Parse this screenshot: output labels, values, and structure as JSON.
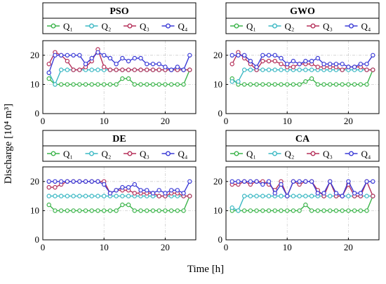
{
  "figure": {
    "xlabel": "Time [h]",
    "ylabel": "Discharge [10⁴ m³]"
  },
  "chart_data": [
    {
      "type": "line",
      "title": "PSO",
      "xlim": [
        0,
        25
      ],
      "ylim": [
        0,
        25
      ],
      "xticks": [
        0,
        10,
        20
      ],
      "yticks": [
        0,
        10,
        20
      ],
      "grid": true,
      "legend": "top",
      "x": [
        1,
        2,
        3,
        4,
        5,
        6,
        7,
        8,
        9,
        10,
        11,
        12,
        13,
        14,
        15,
        16,
        17,
        18,
        19,
        20,
        21,
        22,
        23,
        24
      ],
      "series": [
        {
          "name": "Q₁",
          "color": "#3cb44b",
          "values": [
            12,
            10,
            10,
            10,
            10,
            10,
            10,
            10,
            10,
            10,
            10,
            10,
            12,
            12,
            10,
            10,
            10,
            10,
            10,
            10,
            10,
            10,
            10,
            15
          ]
        },
        {
          "name": "Q₂",
          "color": "#3bb8c4",
          "values": [
            14,
            10,
            15,
            15,
            15,
            15,
            15,
            15,
            15,
            15,
            15,
            15,
            15,
            15,
            15,
            15,
            15,
            15,
            15,
            15,
            15,
            15,
            15,
            15
          ]
        },
        {
          "name": "Q₃",
          "color": "#b5305a",
          "values": [
            17,
            21,
            20,
            18,
            15,
            15,
            16,
            18,
            22,
            16,
            15,
            15,
            15,
            15,
            15,
            15,
            15,
            15,
            15,
            15,
            15,
            15,
            15,
            15
          ]
        },
        {
          "name": "Q₄",
          "color": "#3b3bd6",
          "values": [
            14,
            20,
            20,
            20,
            20,
            20,
            17,
            19,
            21,
            20,
            19,
            17,
            19,
            18,
            19,
            19,
            17,
            17,
            17,
            16,
            15,
            16,
            15,
            20
          ]
        }
      ]
    },
    {
      "type": "line",
      "title": "GWO",
      "xlim": [
        0,
        25
      ],
      "ylim": [
        0,
        25
      ],
      "xticks": [
        0,
        10,
        20
      ],
      "yticks": [
        0,
        10,
        20
      ],
      "grid": true,
      "legend": "top",
      "x": [
        1,
        2,
        3,
        4,
        5,
        6,
        7,
        8,
        9,
        10,
        11,
        12,
        13,
        14,
        15,
        16,
        17,
        18,
        19,
        20,
        21,
        22,
        23,
        24
      ],
      "series": [
        {
          "name": "Q₁",
          "color": "#3cb44b",
          "values": [
            12,
            10,
            10,
            10,
            10,
            10,
            10,
            10,
            10,
            10,
            10,
            10,
            11,
            12,
            10,
            10,
            10,
            10,
            10,
            10,
            10,
            10,
            10,
            15
          ]
        },
        {
          "name": "Q₂",
          "color": "#3bb8c4",
          "values": [
            11,
            11,
            15,
            15,
            15,
            15,
            15,
            15,
            15,
            15,
            15,
            15,
            15,
            15,
            15,
            15,
            15,
            15,
            15,
            15,
            15,
            15,
            15,
            15
          ]
        },
        {
          "name": "Q₃",
          "color": "#b5305a",
          "values": [
            17,
            21,
            19,
            17,
            15,
            18,
            18,
            18,
            17,
            16,
            16,
            17,
            17,
            17,
            16,
            16,
            16,
            16,
            15,
            16,
            16,
            16,
            15,
            15
          ]
        },
        {
          "name": "Q₄",
          "color": "#3b3bd6",
          "values": [
            20,
            20,
            20,
            18,
            16,
            20,
            20,
            20,
            19,
            17,
            18,
            17,
            18,
            18,
            19,
            17,
            17,
            17,
            17,
            16,
            16,
            17,
            17,
            20
          ]
        }
      ]
    },
    {
      "type": "line",
      "title": "DE",
      "xlim": [
        0,
        25
      ],
      "ylim": [
        0,
        25
      ],
      "xticks": [
        0,
        10,
        20
      ],
      "yticks": [
        0,
        10,
        20
      ],
      "grid": true,
      "legend": "top",
      "x": [
        1,
        2,
        3,
        4,
        5,
        6,
        7,
        8,
        9,
        10,
        11,
        12,
        13,
        14,
        15,
        16,
        17,
        18,
        19,
        20,
        21,
        22,
        23,
        24
      ],
      "series": [
        {
          "name": "Q₁",
          "color": "#3cb44b",
          "values": [
            12,
            10,
            10,
            10,
            10,
            10,
            10,
            10,
            10,
            10,
            10,
            10,
            12,
            12,
            10,
            10,
            10,
            10,
            10,
            10,
            10,
            10,
            10,
            15
          ]
        },
        {
          "name": "Q₂",
          "color": "#3bb8c4",
          "values": [
            15,
            15,
            15,
            15,
            15,
            15,
            15,
            15,
            15,
            15,
            15,
            15,
            15,
            15,
            15,
            15,
            15,
            15,
            15,
            15,
            15,
            15,
            15,
            15
          ]
        },
        {
          "name": "Q₃",
          "color": "#b5305a",
          "values": [
            18,
            18,
            19,
            20,
            20,
            20,
            20,
            20,
            20,
            20,
            16,
            17,
            17,
            17,
            16,
            16,
            16,
            16,
            15,
            15,
            16,
            16,
            15,
            15
          ]
        },
        {
          "name": "Q₄",
          "color": "#3b3bd6",
          "values": [
            20,
            20,
            20,
            20,
            20,
            20,
            20,
            20,
            20,
            19,
            16,
            17,
            18,
            18,
            19,
            17,
            17,
            16,
            17,
            16,
            17,
            17,
            16,
            20
          ]
        }
      ]
    },
    {
      "type": "line",
      "title": "CA",
      "xlim": [
        0,
        25
      ],
      "ylim": [
        0,
        25
      ],
      "xticks": [
        0,
        10,
        20
      ],
      "yticks": [
        0,
        10,
        20
      ],
      "grid": true,
      "legend": "top",
      "x": [
        1,
        2,
        3,
        4,
        5,
        6,
        7,
        8,
        9,
        10,
        11,
        12,
        13,
        14,
        15,
        16,
        17,
        18,
        19,
        20,
        21,
        22,
        23,
        24
      ],
      "series": [
        {
          "name": "Q₁",
          "color": "#3cb44b",
          "values": [
            10,
            10,
            10,
            10,
            10,
            10,
            10,
            10,
            10,
            10,
            10,
            10,
            12,
            10,
            10,
            10,
            10,
            10,
            10,
            10,
            10,
            10,
            10,
            15
          ]
        },
        {
          "name": "Q₂",
          "color": "#3bb8c4",
          "values": [
            11,
            10,
            15,
            15,
            15,
            15,
            15,
            15,
            15,
            15,
            15,
            15,
            15,
            15,
            15,
            15,
            15,
            15,
            15,
            15,
            15,
            15,
            15,
            15
          ]
        },
        {
          "name": "Q₃",
          "color": "#b5305a",
          "values": [
            19,
            19,
            20,
            19,
            20,
            20,
            19,
            17,
            20,
            15,
            20,
            19,
            20,
            20,
            17,
            15,
            20,
            15,
            15,
            19,
            15,
            15,
            20,
            15
          ]
        },
        {
          "name": "Q₄",
          "color": "#3b3bd6",
          "values": [
            20,
            20,
            20,
            20,
            20,
            19,
            20,
            16,
            19,
            15,
            20,
            20,
            20,
            20,
            16,
            16,
            20,
            16,
            15,
            20,
            16,
            16,
            20,
            20
          ]
        }
      ]
    }
  ]
}
